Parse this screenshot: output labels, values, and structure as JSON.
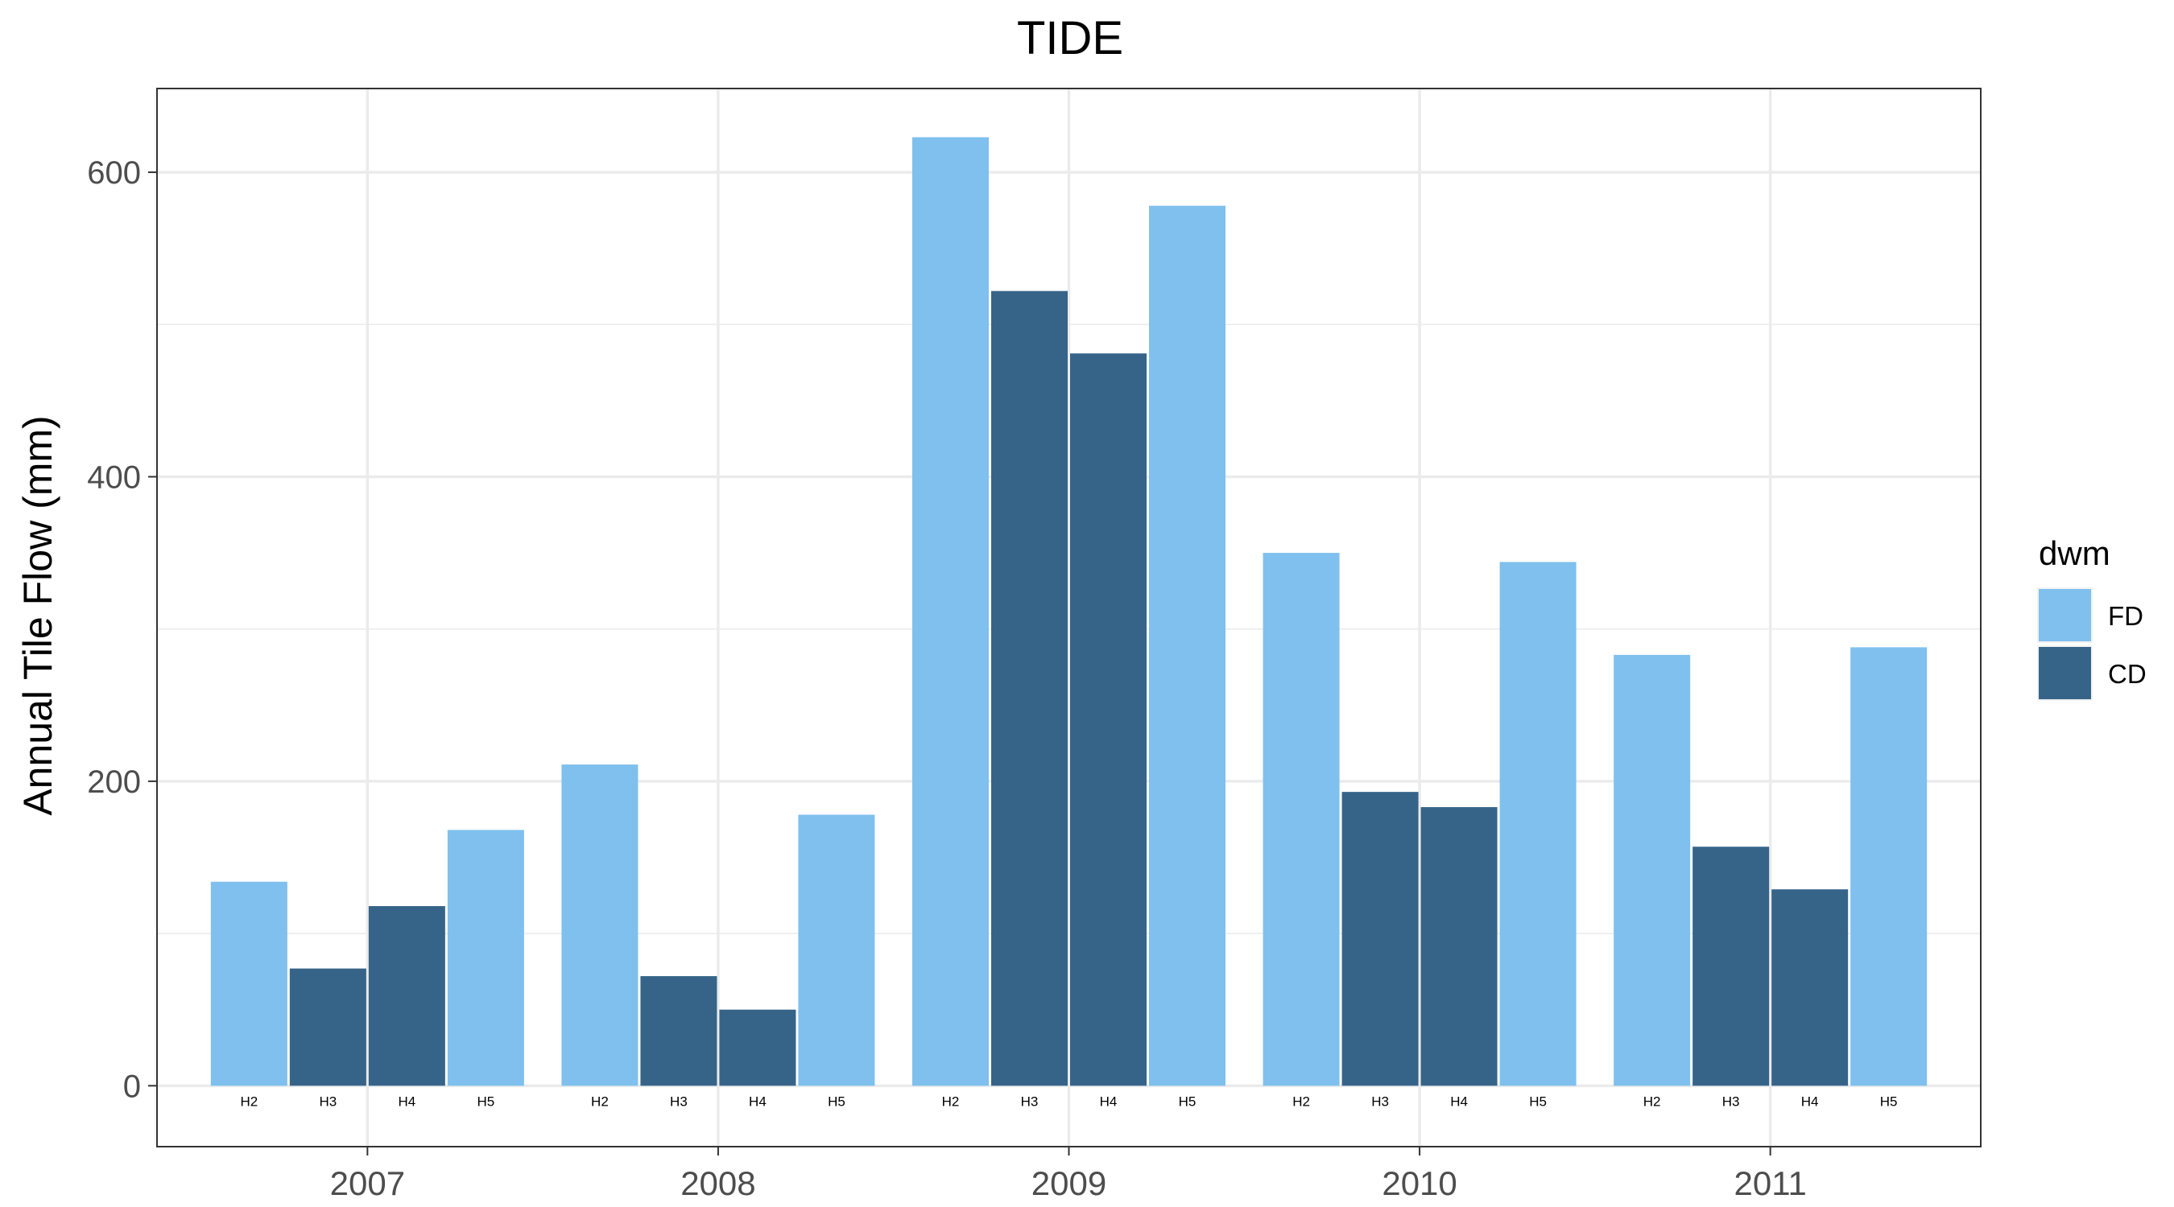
{
  "chart_data": {
    "type": "bar",
    "title": "TIDE",
    "xlabel": "",
    "ylabel": "Annual Tile Flow (mm)",
    "ylim": [
      -40,
      655
    ],
    "yticks": [
      0,
      200,
      400,
      600
    ],
    "grid": true,
    "legend": {
      "title": "dwm",
      "position": "right",
      "entries": [
        "FD",
        "CD"
      ]
    },
    "colors": {
      "FD": "#7fc0ee",
      "CD": "#366489"
    },
    "categories": [
      "2007",
      "2008",
      "2009",
      "2010",
      "2011"
    ],
    "plots": [
      "H2",
      "H3",
      "H4",
      "H5"
    ],
    "bars": [
      [
        {
          "plot": "H2",
          "dwm": "FD",
          "value": 134
        },
        {
          "plot": "H3",
          "dwm": "CD",
          "value": 77
        },
        {
          "plot": "H4",
          "dwm": "CD",
          "value": 118
        },
        {
          "plot": "H5",
          "dwm": "FD",
          "value": 168
        }
      ],
      [
        {
          "plot": "H2",
          "dwm": "FD",
          "value": 211
        },
        {
          "plot": "H3",
          "dwm": "CD",
          "value": 72
        },
        {
          "plot": "H4",
          "dwm": "CD",
          "value": 50
        },
        {
          "plot": "H5",
          "dwm": "FD",
          "value": 178
        }
      ],
      [
        {
          "plot": "H2",
          "dwm": "FD",
          "value": 623
        },
        {
          "plot": "H3",
          "dwm": "CD",
          "value": 522
        },
        {
          "plot": "H4",
          "dwm": "CD",
          "value": 481
        },
        {
          "plot": "H5",
          "dwm": "FD",
          "value": 578
        }
      ],
      [
        {
          "plot": "H2",
          "dwm": "FD",
          "value": 350
        },
        {
          "plot": "H3",
          "dwm": "CD",
          "value": 193
        },
        {
          "plot": "H4",
          "dwm": "CD",
          "value": 183
        },
        {
          "plot": "H5",
          "dwm": "FD",
          "value": 344
        }
      ],
      [
        {
          "plot": "H2",
          "dwm": "FD",
          "value": 283
        },
        {
          "plot": "H3",
          "dwm": "CD",
          "value": 157
        },
        {
          "plot": "H4",
          "dwm": "CD",
          "value": 129
        },
        {
          "plot": "H5",
          "dwm": "FD",
          "value": 288
        }
      ]
    ]
  }
}
